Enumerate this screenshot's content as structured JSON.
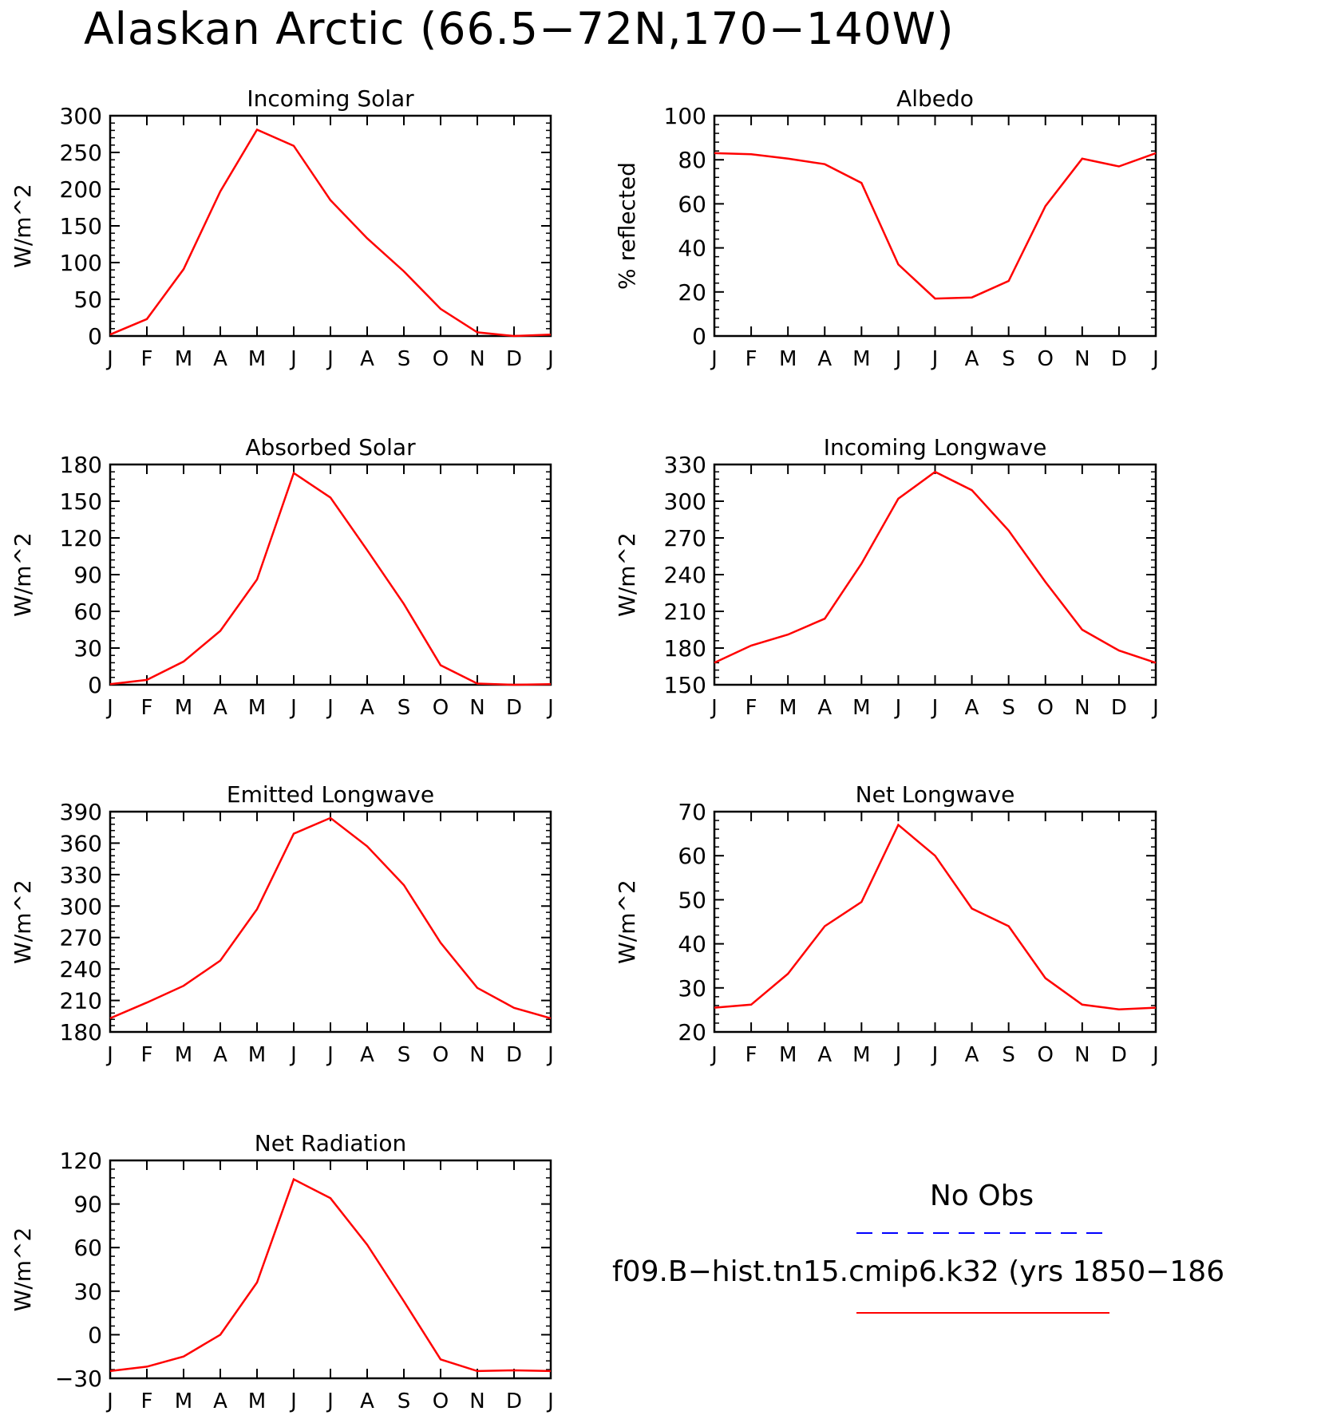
{
  "title": "Alaskan Arctic (66.5−72N,170−140W)",
  "colors": {
    "model": "#ff0000",
    "obs": "#0000ff",
    "axes": "#000000"
  },
  "legend": {
    "obs_label": "No Obs",
    "model_label": "f09.B−hist.tn15.cmip6.k32 (yrs 1850−186",
    "obs_line_style": "dashed",
    "model_line_style": "solid"
  },
  "chart_data": [
    {
      "type": "line",
      "title": "Incoming Solar",
      "ylabel": "W/m^2",
      "ylim": [
        0,
        300
      ],
      "yticks": [
        0,
        50,
        100,
        150,
        200,
        250,
        300
      ],
      "ytick_labels": [
        "0",
        "50",
        "100",
        "150",
        "200",
        "250",
        "300"
      ],
      "categories": [
        "J",
        "F",
        "M",
        "A",
        "M",
        "J",
        "J",
        "A",
        "S",
        "O",
        "N",
        "D",
        "J"
      ],
      "series": [
        {
          "values": [
            2,
            23,
            91,
            197,
            281,
            259,
            185,
            133,
            88,
            37,
            5,
            0,
            2
          ]
        }
      ]
    },
    {
      "type": "line",
      "title": "Albedo",
      "ylabel": "% reflected",
      "ylim": [
        0,
        100
      ],
      "yticks": [
        0,
        20,
        40,
        60,
        80,
        100
      ],
      "ytick_labels": [
        "0",
        "20",
        "40",
        "60",
        "80",
        "100"
      ],
      "categories": [
        "J",
        "F",
        "M",
        "A",
        "M",
        "J",
        "J",
        "A",
        "S",
        "O",
        "N",
        "D",
        "J"
      ],
      "series": [
        {
          "values": [
            83,
            82.5,
            80.5,
            78,
            69.5,
            32.5,
            17,
            17.5,
            25,
            59,
            80.5,
            77,
            83
          ]
        }
      ]
    },
    {
      "type": "line",
      "title": "Absorbed Solar",
      "ylabel": "W/m^2",
      "ylim": [
        0,
        180
      ],
      "yticks": [
        0,
        30,
        60,
        90,
        120,
        150,
        180
      ],
      "ytick_labels": [
        "0",
        "30",
        "60",
        "90",
        "120",
        "150",
        "180"
      ],
      "categories": [
        "J",
        "F",
        "M",
        "A",
        "M",
        "J",
        "J",
        "A",
        "S",
        "O",
        "N",
        "D",
        "J"
      ],
      "series": [
        {
          "values": [
            0.5,
            4,
            19,
            44,
            86,
            173,
            153,
            110,
            66,
            16,
            1,
            0,
            0.5
          ]
        }
      ]
    },
    {
      "type": "line",
      "title": "Incoming Longwave",
      "ylabel": "W/m^2",
      "ylim": [
        150,
        330
      ],
      "yticks": [
        150,
        180,
        210,
        240,
        270,
        300,
        330
      ],
      "ytick_labels": [
        "150",
        "180",
        "210",
        "240",
        "270",
        "300",
        "330"
      ],
      "categories": [
        "J",
        "F",
        "M",
        "A",
        "M",
        "J",
        "J",
        "A",
        "S",
        "O",
        "N",
        "D",
        "J"
      ],
      "series": [
        {
          "values": [
            168,
            182,
            191,
            204,
            249,
            302,
            324,
            309,
            276,
            234,
            195,
            178,
            168
          ]
        }
      ]
    },
    {
      "type": "line",
      "title": "Emitted Longwave",
      "ylabel": "W/m^2",
      "ylim": [
        180,
        390
      ],
      "yticks": [
        180,
        210,
        240,
        270,
        300,
        330,
        360,
        390
      ],
      "ytick_labels": [
        "180",
        "210",
        "240",
        "270",
        "300",
        "330",
        "360",
        "390"
      ],
      "categories": [
        "J",
        "F",
        "M",
        "A",
        "M",
        "J",
        "J",
        "A",
        "S",
        "O",
        "N",
        "D",
        "J"
      ],
      "series": [
        {
          "values": [
            193,
            208,
            224,
            248,
            297,
            369,
            384,
            357,
            320,
            265,
            222,
            203,
            193
          ]
        }
      ]
    },
    {
      "type": "line",
      "title": "Net Longwave",
      "ylabel": "W/m^2",
      "ylim": [
        20,
        70
      ],
      "yticks": [
        20,
        30,
        40,
        50,
        60,
        70
      ],
      "ytick_labels": [
        "20",
        "30",
        "40",
        "50",
        "60",
        "70"
      ],
      "categories": [
        "J",
        "F",
        "M",
        "A",
        "M",
        "J",
        "J",
        "A",
        "S",
        "O",
        "N",
        "D",
        "J"
      ],
      "series": [
        {
          "values": [
            25.5,
            26.2,
            33.2,
            44,
            49.5,
            67,
            60,
            48,
            44,
            32.2,
            26.2,
            25.1,
            25.5
          ]
        }
      ]
    },
    {
      "type": "line",
      "title": "Net Radiation",
      "ylabel": "W/m^2",
      "ylim": [
        -30,
        120
      ],
      "yticks": [
        -30,
        0,
        30,
        60,
        90,
        120
      ],
      "ytick_labels": [
        "−30",
        "0",
        "30",
        "60",
        "90",
        "120"
      ],
      "categories": [
        "J",
        "F",
        "M",
        "A",
        "M",
        "J",
        "J",
        "A",
        "S",
        "O",
        "N",
        "D",
        "J"
      ],
      "series": [
        {
          "values": [
            -25,
            -22,
            -15,
            0,
            36,
            107,
            94,
            62,
            23,
            -17,
            -25,
            -24.5,
            -25
          ]
        }
      ]
    }
  ]
}
